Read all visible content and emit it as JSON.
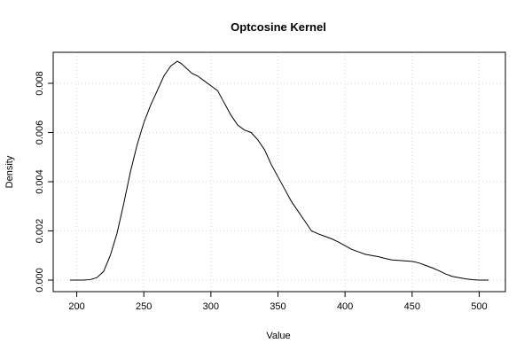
{
  "chart_data": {
    "type": "line",
    "title": "Optcosine Kernel",
    "xlabel": "Value",
    "ylabel": "Density",
    "xlim": [
      195,
      507
    ],
    "ylim": [
      0,
      0.0089
    ],
    "x_ticks": [
      200,
      250,
      300,
      350,
      400,
      450,
      500
    ],
    "x_tick_labels": [
      "200",
      "250",
      "300",
      "350",
      "400",
      "450",
      "500"
    ],
    "y_ticks": [
      0,
      0.002,
      0.004,
      0.006,
      0.008
    ],
    "y_tick_labels": [
      "0.000",
      "0.002",
      "0.004",
      "0.006",
      "0.008"
    ],
    "grid": true,
    "legend": "none",
    "line_color": "#000000",
    "grid_color": "#d9d9d9",
    "series": [
      {
        "x": [
          195,
          205,
          210,
          215,
          220,
          225,
          230,
          235,
          240,
          245,
          250,
          255,
          260,
          265,
          270,
          275,
          278,
          282,
          286,
          290,
          295,
          300,
          305,
          310,
          315,
          320,
          325,
          330,
          335,
          340,
          345,
          350,
          355,
          360,
          365,
          370,
          375,
          380,
          385,
          390,
          395,
          400,
          405,
          410,
          415,
          420,
          425,
          430,
          435,
          440,
          445,
          450,
          455,
          460,
          465,
          470,
          475,
          480,
          485,
          490,
          495,
          500,
          507
        ],
        "y": [
          0,
          0,
          2e-05,
          0.0001,
          0.00035,
          0.001,
          0.0019,
          0.0031,
          0.0044,
          0.0055,
          0.0064,
          0.0071,
          0.0077,
          0.0083,
          0.0087,
          0.0089,
          0.0088,
          0.0086,
          0.0084,
          0.0083,
          0.0081,
          0.0079,
          0.0077,
          0.0072,
          0.0067,
          0.0063,
          0.0061,
          0.006,
          0.0057,
          0.0053,
          0.0047,
          0.0042,
          0.0037,
          0.0032,
          0.0028,
          0.0024,
          0.002,
          0.00188,
          0.00178,
          0.00168,
          0.00155,
          0.0014,
          0.00125,
          0.00115,
          0.00105,
          0.001,
          0.00095,
          0.00088,
          0.00082,
          0.0008,
          0.00078,
          0.00076,
          0.0007,
          0.0006,
          0.0005,
          0.00038,
          0.00025,
          0.00015,
          0.0001,
          5e-05,
          2e-05,
          0,
          0
        ]
      }
    ]
  }
}
